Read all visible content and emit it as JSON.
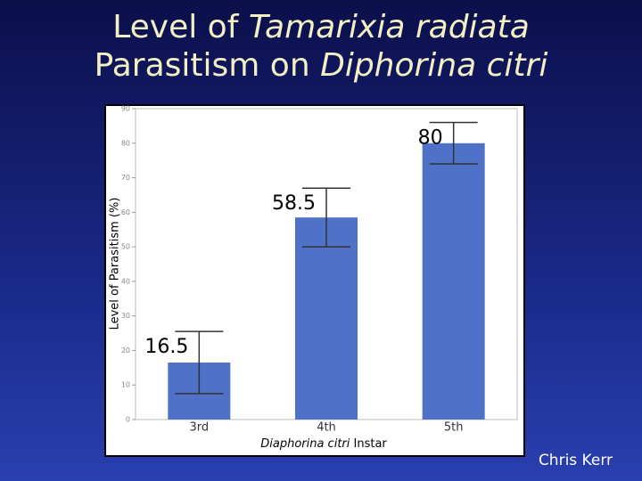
{
  "chart_data": {
    "type": "bar",
    "title": [
      [
        {
          "text": "Level of ",
          "italic": false
        },
        {
          "text": "Tamarixia radiata",
          "italic": true
        }
      ],
      [
        {
          "text": "Parasitism on ",
          "italic": false
        },
        {
          "text": "Diphorina citri",
          "italic": true
        }
      ]
    ],
    "y_label": "Level of Parasitism (%)",
    "x_label": [
      {
        "text": "Diaphorina citri",
        "italic": true
      },
      {
        "text": " Instar",
        "italic": false
      }
    ],
    "categories": [
      "3rd",
      "4th",
      "5th"
    ],
    "values": [
      16.5,
      58.5,
      80
    ],
    "errors": [
      9,
      8.5,
      6
    ],
    "color": "#4f72c8",
    "ylim": [
      0,
      90
    ],
    "yticks": [
      0,
      10,
      20,
      30,
      40,
      50,
      60,
      70,
      80,
      90
    ]
  },
  "footer": "Chris Kerr"
}
